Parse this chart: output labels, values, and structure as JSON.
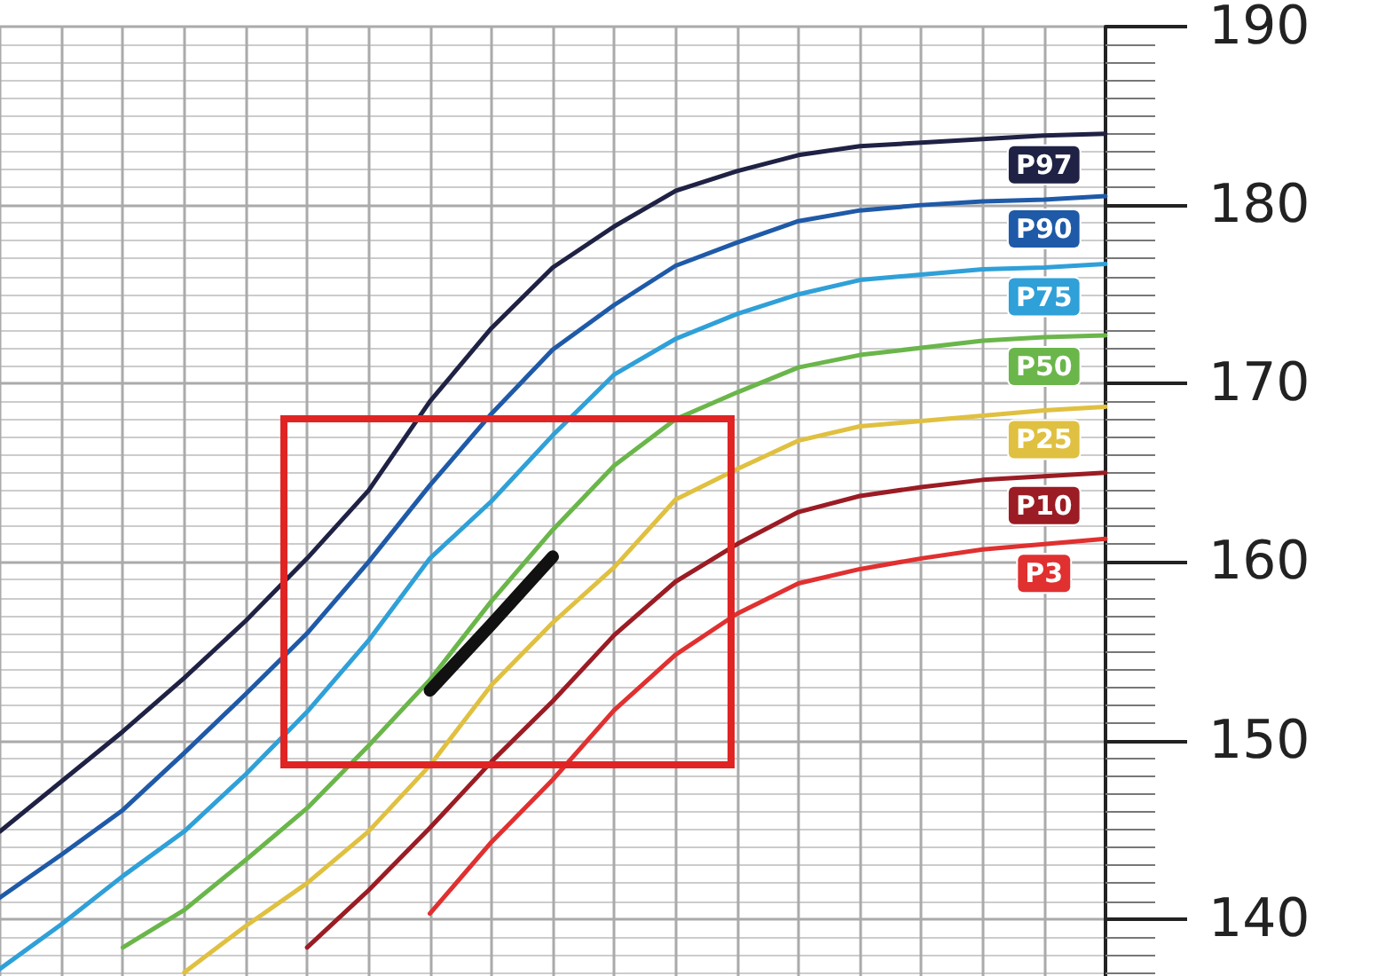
{
  "chart_data": {
    "type": "line",
    "categories": [
      null,
      null,
      null,
      null,
      null,
      null,
      null,
      null,
      null,
      null,
      null,
      null,
      null,
      null,
      null,
      null,
      null,
      null,
      null
    ],
    "series": [
      {
        "name": "P97",
        "color": "#1f2244",
        "values": [
          144.9,
          147.7,
          150.5,
          153.5,
          156.7,
          160.2,
          164.0,
          169.0,
          173.1,
          176.5,
          178.8,
          180.8,
          181.9,
          182.8,
          183.3,
          183.5,
          183.7,
          183.9,
          184.0
        ]
      },
      {
        "name": "P90",
        "color": "#1f5aa8",
        "values": [
          141.2,
          143.6,
          146.1,
          149.3,
          152.6,
          156.0,
          160.0,
          164.3,
          168.3,
          171.9,
          174.4,
          176.6,
          177.9,
          179.1,
          179.7,
          180.0,
          180.2,
          180.3,
          180.5
        ]
      },
      {
        "name": "P75",
        "color": "#2fa0d8",
        "values": [
          137.2,
          139.7,
          142.4,
          144.9,
          148.1,
          151.6,
          155.6,
          160.2,
          163.4,
          167.1,
          170.5,
          172.5,
          173.9,
          175.0,
          175.8,
          176.1,
          176.4,
          176.5,
          176.7
        ]
      },
      {
        "name": "P50",
        "color": "#6ab64a",
        "values": [
          null,
          null,
          138.4,
          140.5,
          143.3,
          146.2,
          149.7,
          153.4,
          157.8,
          161.8,
          165.4,
          168.0,
          169.5,
          170.9,
          171.6,
          172.0,
          172.4,
          172.6,
          172.7
        ]
      },
      {
        "name": "P25",
        "color": "#e0c040",
        "values": [
          null,
          null,
          null,
          137.0,
          139.6,
          142.0,
          144.9,
          148.6,
          153.1,
          156.6,
          159.7,
          163.5,
          165.2,
          166.8,
          167.6,
          167.9,
          168.2,
          168.5,
          168.7
        ]
      },
      {
        "name": "P10",
        "color": "#9b1c24",
        "values": [
          null,
          null,
          null,
          null,
          null,
          138.4,
          141.6,
          145.1,
          148.8,
          152.2,
          155.9,
          158.9,
          161.0,
          162.8,
          163.7,
          164.2,
          164.6,
          164.8,
          165.0
        ]
      },
      {
        "name": "P3",
        "color": "#e03030",
        "values": [
          null,
          null,
          null,
          null,
          null,
          null,
          null,
          140.3,
          144.3,
          147.8,
          151.7,
          154.8,
          157.1,
          158.8,
          159.6,
          160.2,
          160.7,
          161.0,
          161.3
        ]
      },
      {
        "color": "#111111",
        "values": [
          null,
          null,
          null,
          null,
          null,
          null,
          null,
          152.8,
          156.5,
          160.3,
          null,
          null,
          null,
          null,
          null,
          null,
          null,
          null,
          null
        ]
      }
    ],
    "ylim": [
      136.8,
      190
    ],
    "yticks": [
      140,
      150,
      160,
      170,
      180,
      190
    ],
    "grid": true,
    "legend": false,
    "marker": "none",
    "line_style": "solid"
  }
}
